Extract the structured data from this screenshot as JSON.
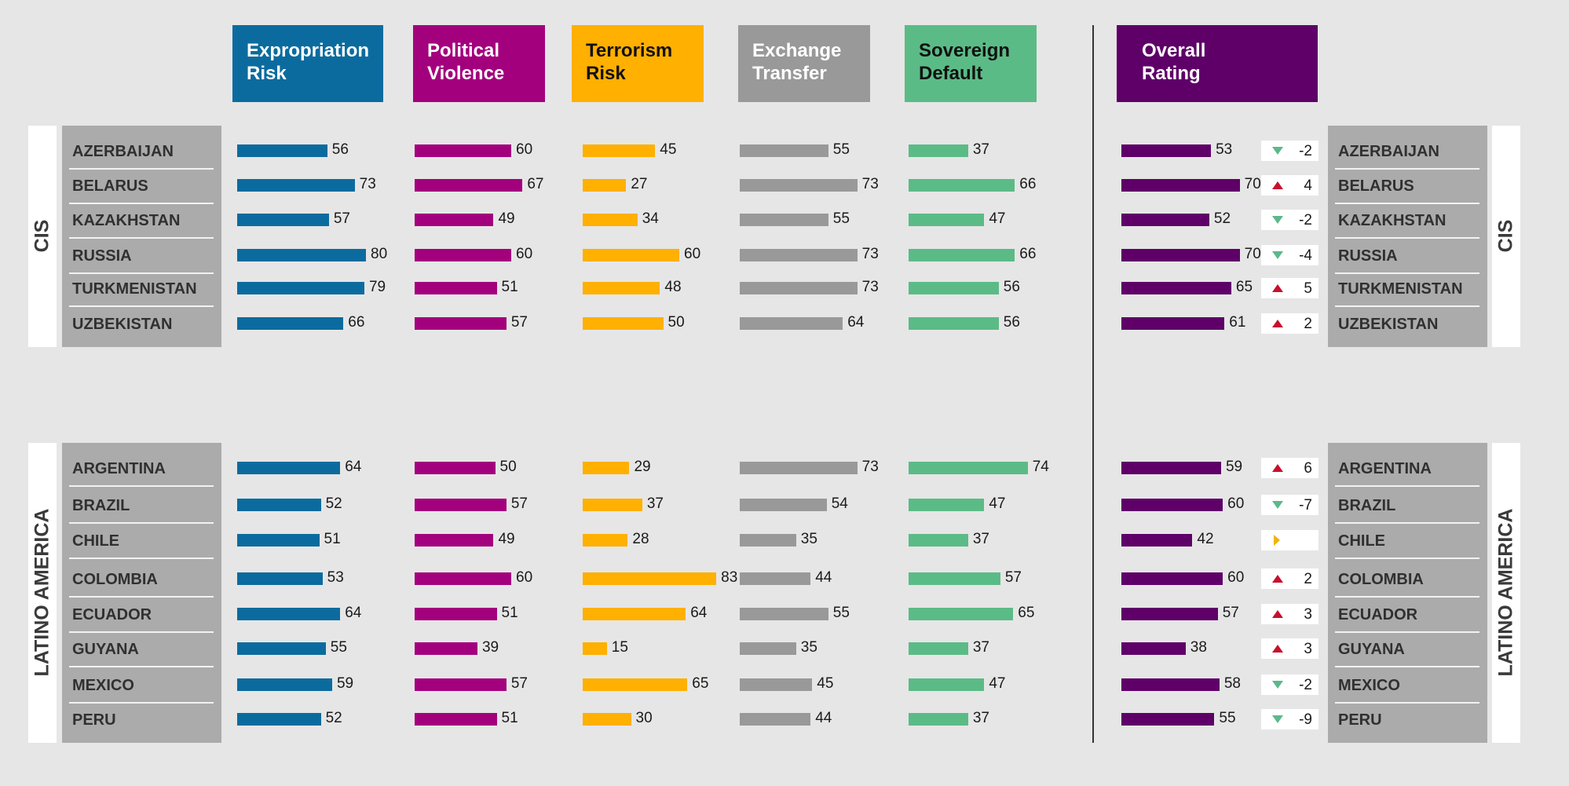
{
  "colors": {
    "expropriation": "#0c6b9e",
    "political": "#a3007d",
    "terrorism": "#ffb000",
    "exchange": "#999999",
    "sovereign": "#5bbb86",
    "overall": "#5e0068",
    "up": "#c8102e",
    "down": "#5bb98a",
    "flat": "#f2b400"
  },
  "headers": {
    "expropriation": "Expropriation\nRisk",
    "political": "Political\nViolence",
    "terrorism": "Terrorism\nRisk",
    "exchange": "Exchange\nTransfer",
    "sovereign": "Sovereign\nDefault",
    "overall": "Overall\nRating"
  },
  "chart_data": {
    "type": "bar",
    "orientation": "horizontal",
    "metrics": [
      "Expropriation Risk",
      "Political Violence",
      "Terrorism Risk",
      "Exchange Transfer",
      "Sovereign Default",
      "Overall Rating"
    ],
    "regions": [
      {
        "name": "CIS",
        "countries": [
          {
            "name": "AZERBAIJAN",
            "values": [
              56,
              60,
              45,
              55,
              37,
              53
            ],
            "change": "-2",
            "trend": "down"
          },
          {
            "name": "BELARUS",
            "values": [
              73,
              67,
              27,
              73,
              66,
              70
            ],
            "change": "4",
            "trend": "up"
          },
          {
            "name": "KAZAKHSTAN",
            "values": [
              57,
              49,
              34,
              55,
              47,
              52
            ],
            "change": "-2",
            "trend": "down"
          },
          {
            "name": "RUSSIA",
            "values": [
              80,
              60,
              60,
              73,
              66,
              70
            ],
            "change": "-4",
            "trend": "down"
          },
          {
            "name": "TURKMENISTAN",
            "values": [
              79,
              51,
              48,
              73,
              56,
              65
            ],
            "change": "5",
            "trend": "up"
          },
          {
            "name": "UZBEKISTAN",
            "values": [
              66,
              57,
              50,
              64,
              56,
              61
            ],
            "change": "2",
            "trend": "up"
          }
        ]
      },
      {
        "name": "LATINO AMERICA",
        "countries": [
          {
            "name": "ARGENTINA",
            "values": [
              64,
              50,
              29,
              73,
              74,
              59
            ],
            "change": "6",
            "trend": "up"
          },
          {
            "name": "BRAZIL",
            "values": [
              52,
              57,
              37,
              54,
              47,
              60
            ],
            "change": "-7",
            "trend": "down"
          },
          {
            "name": "CHILE",
            "values": [
              51,
              49,
              28,
              35,
              37,
              42
            ],
            "change": "",
            "trend": "flat"
          },
          {
            "name": "COLOMBIA",
            "values": [
              53,
              60,
              83,
              44,
              57,
              60
            ],
            "change": "2",
            "trend": "up"
          },
          {
            "name": "ECUADOR",
            "values": [
              64,
              51,
              64,
              55,
              65,
              57
            ],
            "change": "3",
            "trend": "up"
          },
          {
            "name": "GUYANA",
            "values": [
              55,
              39,
              15,
              35,
              37,
              38
            ],
            "change": "3",
            "trend": "up"
          },
          {
            "name": "MEXICO",
            "values": [
              59,
              57,
              65,
              45,
              47,
              58
            ],
            "change": "-2",
            "trend": "down"
          },
          {
            "name": "PERU",
            "values": [
              52,
              51,
              30,
              44,
              37,
              55
            ],
            "change": "-9",
            "trend": "down"
          }
        ]
      }
    ]
  }
}
